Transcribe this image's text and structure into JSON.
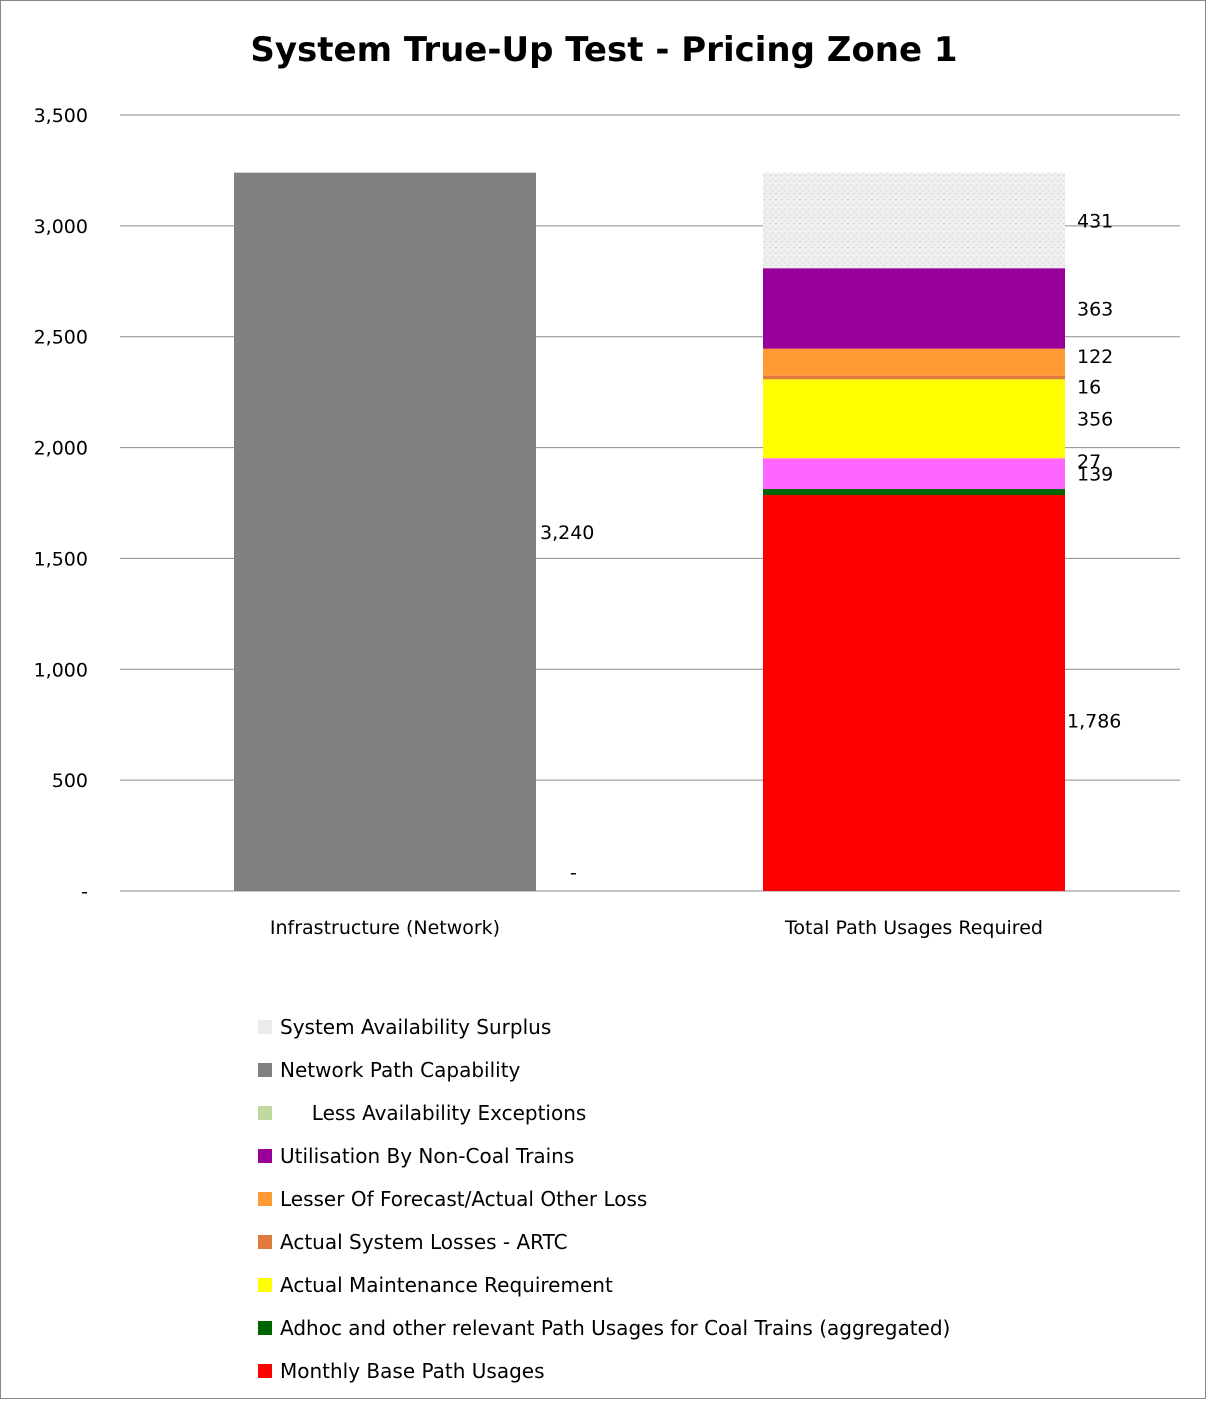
{
  "chart_data": {
    "type": "bar",
    "stacked": true,
    "title": "System True-Up Test - Pricing Zone 1",
    "xlabel": "",
    "ylabel": "",
    "ylim": [
      0,
      3500
    ],
    "yticks": [
      0,
      500,
      1000,
      1500,
      2000,
      2500,
      3000,
      3500
    ],
    "ytick_labels": [
      "-",
      "500",
      "1,000",
      "1,500",
      "2,000",
      "2,500",
      "3,000",
      "3,500"
    ],
    "grid": true,
    "legend_position": "bottom",
    "categories": [
      "Infrastructure (Network)",
      "Total Path Usages Required"
    ],
    "series": [
      {
        "name": "Monthly Base Path Usages",
        "color": "#FF0000",
        "values": [
          0,
          1786
        ],
        "labels": [
          "-",
          "1,786"
        ]
      },
      {
        "name": "Adhoc and other relevant Path Usages for Coal Trains (aggregated)",
        "color": "#006400",
        "values": [
          0,
          27
        ],
        "labels": [
          null,
          "27"
        ]
      },
      {
        "name": "Actual Maintenance Requirement",
        "color": "#FFFF00",
        "values": [
          0,
          356
        ],
        "labels": [
          null,
          "356"
        ]
      },
      {
        "name": "Actual System Losses - ARTC",
        "color": "#E07A3A",
        "values": [
          0,
          16
        ],
        "labels": [
          null,
          "16"
        ]
      },
      {
        "name": "Lesser Of Forecast/Actual Other Loss",
        "color": "#FF9933",
        "values": [
          0,
          122
        ],
        "labels": [
          null,
          "122"
        ]
      },
      {
        "name": "Utilisation By Non-Coal Trains",
        "color": "#990099",
        "values": [
          0,
          363
        ],
        "labels": [
          null,
          "363"
        ]
      },
      {
        "name": "Less Availability Exceptions",
        "color": "#BFD9A0",
        "values": [
          0,
          0
        ],
        "labels": [
          null,
          null
        ]
      },
      {
        "name": "Network Path Capability",
        "color": "#808080",
        "values": [
          3240,
          0
        ],
        "labels": [
          "3,240",
          null
        ]
      },
      {
        "name": "System Availability Surplus",
        "color": "#EBEBEB",
        "values": [
          0,
          431
        ],
        "labels": [
          null,
          "431"
        ]
      }
    ],
    "pink_segment": {
      "color": "#FF66FF",
      "value": 139,
      "label": "139"
    }
  },
  "legend": [
    {
      "name": "System Availability Surplus",
      "color": "#EBEBEB"
    },
    {
      "name": "Network Path Capability",
      "color": "#808080"
    },
    {
      "name": "     Less Availability Exceptions",
      "color": "#BFD9A0"
    },
    {
      "name": "Utilisation By Non-Coal Trains",
      "color": "#990099"
    },
    {
      "name": "Lesser Of Forecast/Actual Other Loss",
      "color": "#FF9933"
    },
    {
      "name": "Actual System Losses - ARTC",
      "color": "#E07A3A"
    },
    {
      "name": "Actual Maintenance Requirement",
      "color": "#FFFF00"
    },
    {
      "name": "Adhoc and other relevant Path Usages for Coal Trains (aggregated)",
      "color": "#006400"
    },
    {
      "name": "Monthly Base Path Usages",
      "color": "#FF0000"
    }
  ]
}
